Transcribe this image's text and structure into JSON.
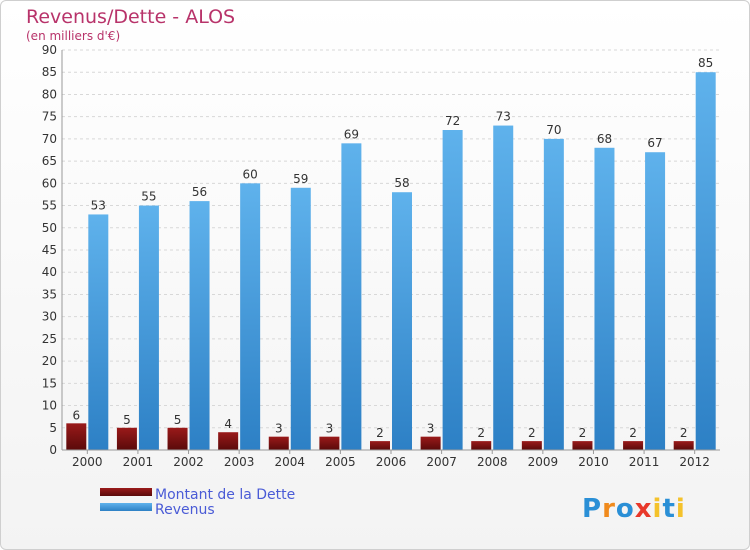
{
  "chart_data": {
    "type": "bar",
    "title": "Revenus/Dette - ALOS",
    "subtitle": "(en milliers d'€)",
    "categories": [
      "2000",
      "2001",
      "2002",
      "2003",
      "2004",
      "2005",
      "2006",
      "2007",
      "2008",
      "2009",
      "2010",
      "2011",
      "2012"
    ],
    "series": [
      {
        "name": "Montant de la Dette",
        "values": [
          6,
          5,
          5,
          4,
          3,
          3,
          2,
          3,
          2,
          2,
          2,
          2,
          2
        ],
        "color": "#8a1515"
      },
      {
        "name": "Revenus",
        "values": [
          53,
          55,
          56,
          60,
          59,
          69,
          58,
          72,
          73,
          70,
          68,
          67,
          85
        ],
        "color": "#4fa3e0"
      }
    ],
    "ylim": [
      0,
      90
    ],
    "yticks": [
      0,
      5,
      10,
      15,
      20,
      25,
      30,
      35,
      40,
      45,
      50,
      55,
      60,
      65,
      70,
      75,
      80,
      85,
      90
    ],
    "grid": true,
    "legend_position": "bottom-left"
  },
  "logo": {
    "text": "Proxiti",
    "letters": [
      "P",
      "r",
      "o",
      "x",
      "i",
      "t",
      "i"
    ],
    "colors": [
      "#2a8fd6",
      "#f08a1c",
      "#2a8fd6",
      "#e8382a",
      "#f4c22b",
      "#2a8fd6",
      "#f4c22b"
    ]
  }
}
